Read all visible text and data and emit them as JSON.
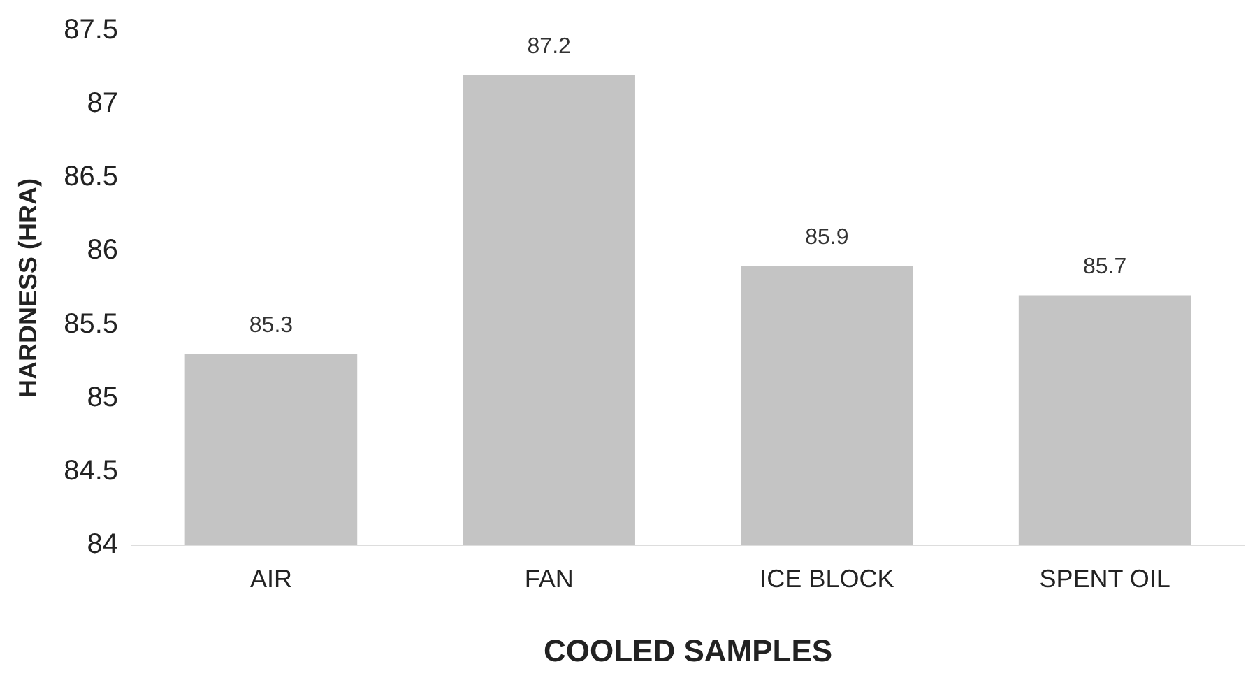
{
  "chart_data": {
    "type": "bar",
    "xlabel": "COOLED SAMPLES",
    "ylabel": "HARDNESS (HRA)",
    "categories": [
      "AIR",
      "FAN",
      "ICE BLOCK",
      "SPENT OIL"
    ],
    "values": [
      85.3,
      87.2,
      85.9,
      85.7
    ],
    "color": "#c4c4c4",
    "ylim": [
      84,
      87.5
    ],
    "yticks": [
      84,
      84.5,
      85,
      85.5,
      86,
      86.5,
      87,
      87.5
    ],
    "data_labels": true,
    "grid": false,
    "legend": false
  }
}
